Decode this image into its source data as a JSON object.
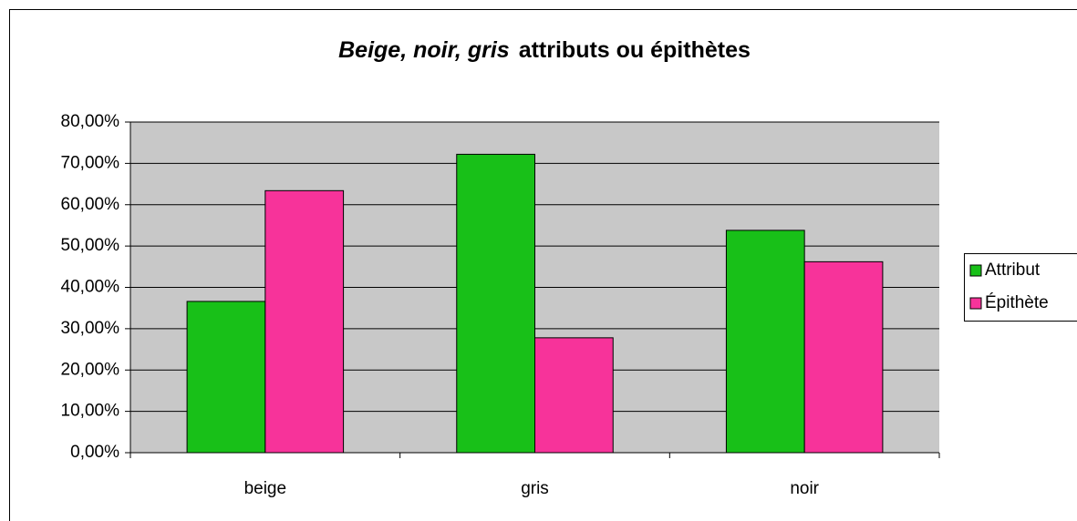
{
  "chart_data": {
    "type": "bar",
    "title": [
      "Beige, noir, gris",
      "attributs ou épithètes"
    ],
    "categories": [
      "beige",
      "gris",
      "noir"
    ],
    "series": [
      {
        "name": "Attribut",
        "color": "#18c018",
        "values": [
          36.6,
          72.2,
          53.8
        ]
      },
      {
        "name": "Épithète",
        "color": "#f7339a",
        "values": [
          63.4,
          27.8,
          46.2
        ]
      }
    ],
    "ylim": [
      0,
      80
    ],
    "yticks": [
      {
        "value": 0,
        "label": "0,00%"
      },
      {
        "value": 10,
        "label": "10,00%"
      },
      {
        "value": 20,
        "label": "20,00%"
      },
      {
        "value": 30,
        "label": "30,00%"
      },
      {
        "value": 40,
        "label": "40,00%"
      },
      {
        "value": 50,
        "label": "50,00%"
      },
      {
        "value": 60,
        "label": "60,00%"
      },
      {
        "value": 70,
        "label": "70,00%"
      },
      {
        "value": 80,
        "label": "80,00%"
      }
    ],
    "grid": true,
    "legend": "right"
  }
}
